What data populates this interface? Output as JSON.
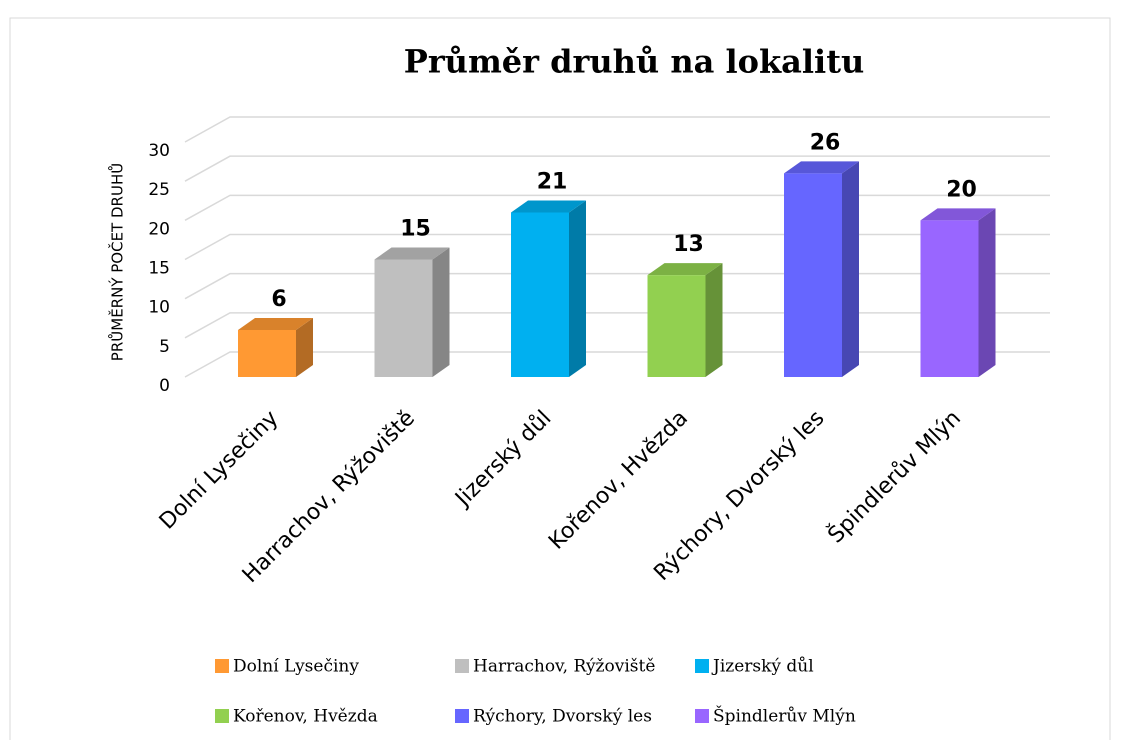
{
  "chart_data": {
    "type": "bar3d",
    "title": "Průměr druhů na lokalitu",
    "y_label": "PRŮMĚRNÝ POČET DRUHŮ",
    "categories": [
      "Dolní Lysečiny",
      "Harrachov, Rýžoviště",
      "Jizerský důl",
      "Kořenov, Hvězda",
      "Rýchory, Dvorský les",
      "Špindlerův Mlýn"
    ],
    "values": [
      6,
      15,
      21,
      13,
      26,
      20
    ],
    "colors": [
      "#ff9933",
      "#bfbfbf",
      "#00b0f0",
      "#92d050",
      "#6666ff",
      "#9966ff"
    ],
    "ylim": [
      0,
      30
    ],
    "yticks": [
      0,
      5,
      10,
      15,
      20,
      25,
      30
    ],
    "grid": true,
    "legend": "bottom"
  }
}
